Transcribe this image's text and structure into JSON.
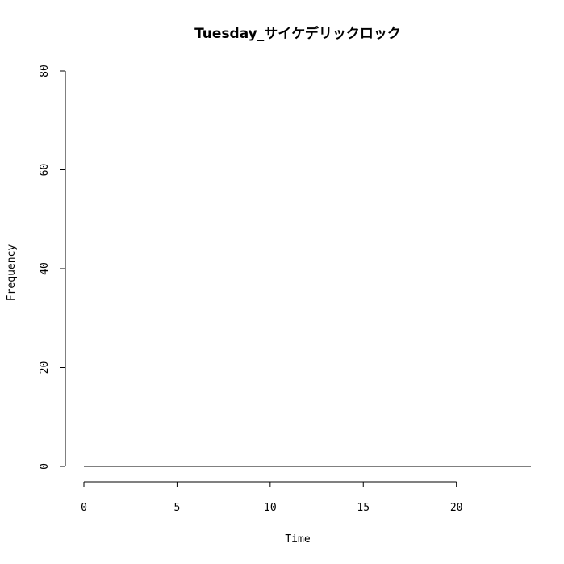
{
  "chart_data": {
    "type": "line",
    "title": "Tuesday_サイケデリックロック",
    "xlabel": "Time",
    "ylabel": "Frequency",
    "xlim": [
      0,
      24
    ],
    "ylim": [
      0,
      80
    ],
    "x_ticks": [
      0,
      5,
      10,
      15,
      20
    ],
    "y_ticks": [
      0,
      20,
      40,
      60,
      80
    ],
    "x_tick_labels": [
      "0",
      "5",
      "10",
      "15",
      "20"
    ],
    "y_tick_labels": [
      "0",
      "20",
      "40",
      "60",
      "80"
    ],
    "grid": false,
    "series": [
      {
        "x": [
          0,
          1,
          2,
          3,
          4,
          5,
          6,
          7,
          8,
          9,
          10,
          11,
          12,
          13,
          14,
          15,
          16,
          17,
          18,
          19,
          20,
          21,
          22,
          23,
          24
        ],
        "values": [
          0,
          0,
          0,
          0,
          0,
          0,
          0,
          0,
          0,
          0,
          0,
          0,
          0,
          0,
          0,
          0,
          0,
          0,
          0,
          0,
          0,
          0,
          0,
          0,
          0
        ]
      }
    ]
  }
}
